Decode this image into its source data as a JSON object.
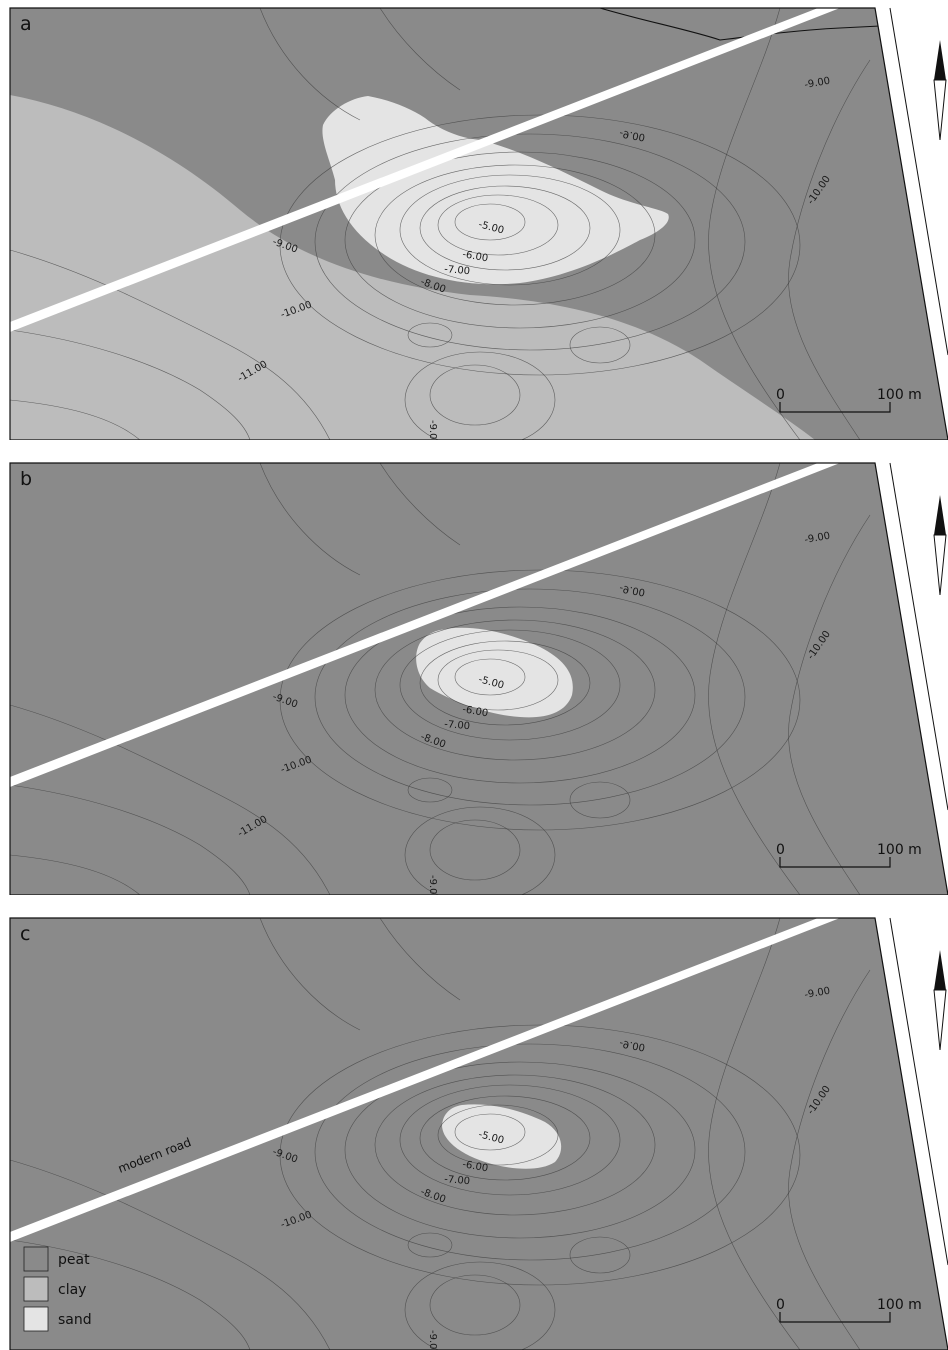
{
  "panels": [
    {
      "letter": "a"
    },
    {
      "letter": "b"
    },
    {
      "letter": "c"
    }
  ],
  "contour_labels": {
    "m5": "-5.00",
    "m6": "-6.00",
    "m7": "-7.00",
    "m8": "-8.00",
    "m9": "-9.00",
    "m10": "-10.00",
    "m11": "-11.00"
  },
  "scale_bar": {
    "start": "0",
    "end": "100 m"
  },
  "road_label": "modern road",
  "legend": [
    {
      "label": "peat",
      "color": "#8a8a8a"
    },
    {
      "label": "clay",
      "color": "#bcbcbc"
    },
    {
      "label": "sand",
      "color": "#e4e4e4"
    }
  ],
  "colors": {
    "peat": "#8a8a8a",
    "clay": "#bcbcbc",
    "sand": "#e4e4e4",
    "road": "#ffffff"
  }
}
